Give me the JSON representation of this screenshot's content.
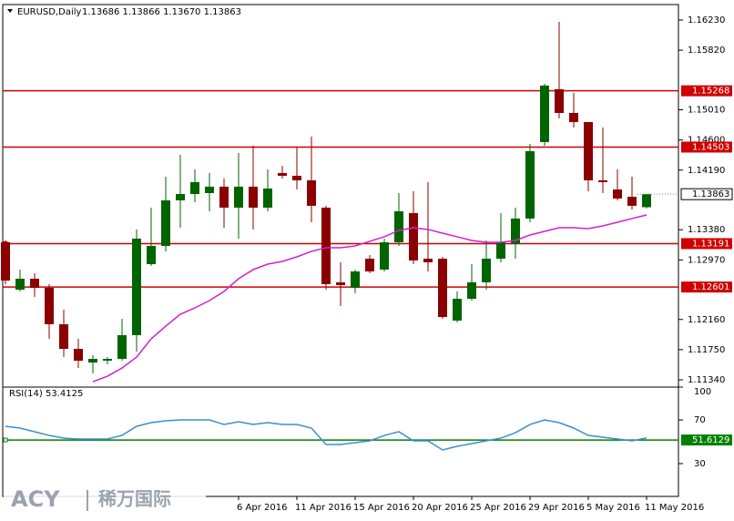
{
  "chart_data": {
    "type": "candlestick",
    "title": "EURUSD,Daily",
    "quote": "1.13686 1.13866 1.13670 1.13863",
    "categories": [
      null,
      null,
      null,
      null,
      null,
      null,
      null,
      null,
      null,
      null,
      null,
      null,
      null,
      null,
      null,
      null,
      "6 Apr 2016",
      null,
      null,
      null,
      "11 Apr 2016",
      null,
      null,
      null,
      "15 Apr 2016",
      null,
      null,
      null,
      "20 Apr 2016",
      null,
      null,
      null,
      "25 Apr 2016",
      null,
      null,
      null,
      "29 Apr 2016",
      null,
      null,
      null,
      "5 May 2016",
      null,
      null,
      null,
      "11 May 2016"
    ],
    "open": [
      1.13209,
      1.12565,
      1.12714,
      1.1259,
      1.12095,
      1.11761,
      1.11575,
      1.116,
      1.11625,
      1.11947,
      1.12912,
      1.1316,
      1.13779,
      1.13865,
      1.13878,
      1.13965,
      1.1368,
      1.13965,
      1.1368,
      1.1415,
      1.14113,
      1.14051,
      1.1368,
      1.12665,
      1.1259,
      1.12986,
      1.12838,
      1.13209,
      1.13606,
      1.12986,
      1.12986,
      1.12145,
      1.12441,
      1.12665,
      1.12986,
      1.13185,
      1.13532,
      1.14571,
      1.15289,
      1.14967,
      1.14843,
      1.14051,
      1.13927,
      1.13828,
      1.13686
    ],
    "high": [
      1.13234,
      1.12838,
      1.12788,
      1.1264,
      1.12293,
      1.11897,
      1.11674,
      1.11649,
      1.12169,
      1.13383,
      1.1368,
      1.14101,
      1.14398,
      1.142,
      1.1415,
      1.14076,
      1.14423,
      1.14522,
      1.142,
      1.14249,
      1.14497,
      1.14646,
      1.13705,
      1.12937,
      1.12838,
      1.13036,
      1.13259,
      1.13878,
      1.13903,
      1.14026,
      1.13011,
      1.12541,
      1.12912,
      1.13234,
      1.13606,
      1.1368,
      1.14546,
      1.15363,
      1.16205,
      1.1524,
      1.14843,
      1.14769,
      1.142,
      1.14101,
      1.13866
    ],
    "low": [
      1.1264,
      1.12541,
      1.12466,
      1.11897,
      1.11649,
      1.11501,
      1.11426,
      1.1155,
      1.116,
      1.11724,
      1.12887,
      1.13086,
      1.13407,
      1.13754,
      1.1363,
      1.13407,
      1.13259,
      1.13383,
      1.1363,
      1.14076,
      1.13927,
      1.13482,
      1.12565,
      1.12343,
      1.12516,
      1.12788,
      1.12813,
      1.1316,
      1.12912,
      1.12813,
      1.12169,
      1.1212,
      1.12417,
      1.12565,
      1.12937,
      1.12986,
      1.13482,
      1.14522,
      1.14893,
      1.14769,
      1.13903,
      1.13878,
      1.13779,
      1.13655,
      1.1367
    ],
    "close": [
      1.12689,
      1.12714,
      1.1259,
      1.12095,
      1.11761,
      1.116,
      1.11625,
      1.11625,
      1.11947,
      1.13259,
      1.1316,
      1.13779,
      1.13865,
      1.14026,
      1.13965,
      1.1368,
      1.13965,
      1.1368,
      1.1394,
      1.14113,
      1.14051,
      1.13705,
      1.1264,
      1.12627,
      1.12813,
      1.12813,
      1.13209,
      1.1363,
      1.12962,
      1.12937,
      1.12194,
      1.12441,
      1.12665,
      1.12986,
      1.13209,
      1.13532,
      1.14447,
      1.15339,
      1.14967,
      1.14843,
      1.14051,
      1.14026,
      1.13804,
      1.13705,
      1.13863
    ],
    "up_color": "#006400",
    "down_color": "#8b0000",
    "ma": {
      "color": "#d020d0",
      "values": [
        null,
        null,
        null,
        null,
        null,
        null,
        1.11315,
        1.11389,
        1.11501,
        1.11649,
        1.11897,
        1.1207,
        1.12231,
        1.12318,
        1.12417,
        1.12541,
        1.12714,
        1.12838,
        1.12912,
        1.12949,
        1.13011,
        1.13086,
        1.13135,
        1.13135,
        1.1316,
        1.13222,
        1.13284,
        1.1337,
        1.13407,
        1.13383,
        1.13333,
        1.13284,
        1.13234,
        1.13209,
        1.13209,
        1.13234,
        1.13308,
        1.13358,
        1.13407,
        1.13407,
        1.13395,
        1.13432,
        1.13482,
        1.13532,
        1.13581
      ]
    },
    "ylim": [
      1.11241,
      1.1644
    ],
    "yticks": [
      {
        "value": 1.1623,
        "label": "1.16230"
      },
      {
        "value": 1.1582,
        "label": "1.15820"
      },
      {
        "value": 1.1501,
        "label": "1.15010"
      },
      {
        "value": 1.146,
        "label": "1.14600"
      },
      {
        "value": 1.1419,
        "label": "1.14190"
      },
      {
        "value": 1.1338,
        "label": "1.13380"
      },
      {
        "value": 1.1297,
        "label": "1.12970"
      },
      {
        "value": 1.1216,
        "label": "1.12160"
      },
      {
        "value": 1.1175,
        "label": "1.11750"
      },
      {
        "value": 1.1134,
        "label": "1.11340"
      }
    ],
    "hlines": {
      "color": "#d00000",
      "levels": [
        {
          "value": 1.15268,
          "label": "1.15268"
        },
        {
          "value": 1.14503,
          "label": "1.14503"
        },
        {
          "value": 1.13191,
          "label": "1.13191"
        },
        {
          "value": 1.12601,
          "label": "1.12601"
        }
      ]
    },
    "bid": {
      "value": 1.13863,
      "label": "1.13863"
    },
    "rsi": {
      "label": "RSI(14) 53.4125",
      "color": "#3a8fd0",
      "values": [
        64.2,
        62.5,
        59.2,
        55.8,
        53.3,
        52.5,
        52.5,
        52.5,
        55.8,
        64.2,
        67.5,
        69.2,
        70.0,
        70.0,
        70.0,
        65.8,
        68.3,
        65.8,
        67.5,
        65.8,
        65.8,
        62.5,
        47.5,
        47.5,
        49.2,
        50.8,
        55.8,
        59.2,
        50.8,
        50.8,
        42.5,
        45.8,
        48.3,
        50.8,
        53.3,
        58.3,
        65.8,
        70.0,
        67.5,
        62.5,
        55.8,
        54.2,
        52.5,
        50.8,
        53.4125
      ],
      "ylim": [
        0,
        100
      ],
      "yticks": [
        100,
        70,
        30
      ],
      "level": {
        "value": 51.6129,
        "label": "51.6129",
        "color": "#008000"
      }
    },
    "watermark": [
      "ACY",
      "稀万国际"
    ]
  }
}
